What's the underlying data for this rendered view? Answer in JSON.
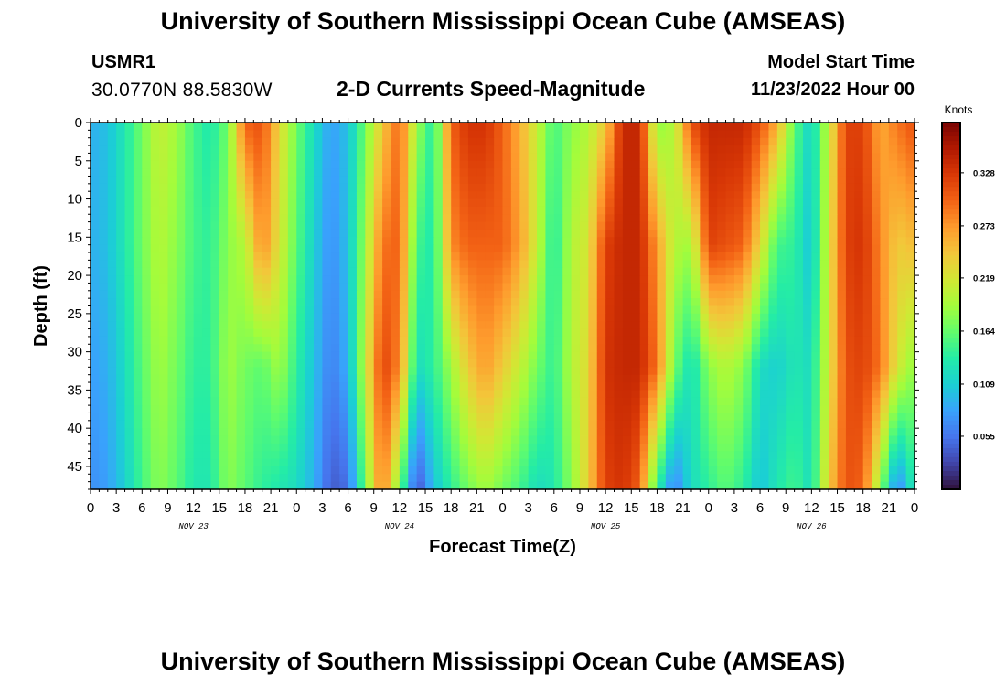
{
  "header": {
    "title": "University of Southern Mississippi Ocean Cube (AMSEAS)",
    "station_id": "USMR1",
    "coordinates": "30.0770N  88.5830W",
    "subtitle": "2-D Currents Speed-Magnitude",
    "model_start_label": "Model Start Time",
    "model_start_value": "11/23/2022 Hour 00"
  },
  "footer": {
    "title": "University of Southern Mississippi Ocean Cube (AMSEAS)"
  },
  "colors": {
    "background": "#ffffff",
    "axis": "#000000"
  },
  "chart_data": {
    "type": "heatmap",
    "xlabel": "Forecast Time(Z)",
    "ylabel": "Depth (ft)",
    "colorbar_label": "Knots",
    "colorbar_ticks": [
      "0.055",
      "0.109",
      "0.164",
      "0.219",
      "0.273",
      "0.328"
    ],
    "colorbar_values": [
      0.055,
      0.109,
      0.164,
      0.219,
      0.273,
      0.328
    ],
    "value_range": [
      0.0,
      0.38
    ],
    "colormap": [
      "#30123b",
      "#4145ab",
      "#4675ed",
      "#39a2fc",
      "#1bcfd4",
      "#24eca6",
      "#61fc6c",
      "#a4fc3b",
      "#d1e834",
      "#f3c63a",
      "#fe9b2d",
      "#f36315",
      "#d93806",
      "#b11901",
      "#7a0402"
    ],
    "x_hours": [
      0,
      96
    ],
    "x_tick_hours": [
      0,
      3,
      6,
      9,
      12,
      15,
      18,
      21,
      24,
      27,
      30,
      33,
      36,
      39,
      42,
      45,
      48,
      51,
      54,
      57,
      60,
      63,
      66,
      69,
      72,
      75,
      78,
      81,
      84,
      87,
      90,
      93,
      96
    ],
    "x_tick_labels": [
      "0",
      "3",
      "6",
      "9",
      "12",
      "15",
      "18",
      "21",
      "0",
      "3",
      "6",
      "9",
      "12",
      "15",
      "18",
      "21",
      "0",
      "3",
      "6",
      "9",
      "12",
      "15",
      "18",
      "21",
      "0",
      "3",
      "6",
      "9",
      "12",
      "15",
      "18",
      "21",
      "0"
    ],
    "day_labels": [
      "NOV 23",
      "NOV 24",
      "NOV 25",
      "NOV 26"
    ],
    "day_label_hours": [
      12,
      36,
      60,
      84
    ],
    "ylim": [
      0,
      48
    ],
    "y_ticks": [
      0,
      5,
      10,
      15,
      20,
      25,
      30,
      35,
      40,
      45
    ],
    "y_tick_labels": [
      "0",
      "5",
      "10",
      "15",
      "20",
      "25",
      "30",
      "35",
      "40",
      "45"
    ],
    "depths": [
      0,
      16,
      32,
      48
    ],
    "hours": [
      0,
      2,
      4,
      6,
      8,
      10,
      12,
      14,
      16,
      18,
      20,
      22,
      24,
      26,
      28,
      30,
      32,
      34,
      36,
      38,
      40,
      42,
      44,
      46,
      48,
      50,
      52,
      54,
      56,
      58,
      60,
      62,
      64,
      66,
      68,
      70,
      72,
      74,
      76,
      78,
      80,
      82,
      84,
      86,
      88,
      90,
      92,
      94,
      96
    ],
    "speed_knots": [
      [
        0.09,
        0.1,
        0.13,
        0.17,
        0.21,
        0.19,
        0.15,
        0.13,
        0.17,
        0.3,
        0.31,
        0.23,
        0.17,
        0.12,
        0.08,
        0.1,
        0.17,
        0.24,
        0.3,
        0.19,
        0.13,
        0.3,
        0.33,
        0.33,
        0.3,
        0.26,
        0.21,
        0.15,
        0.18,
        0.2,
        0.24,
        0.34,
        0.34,
        0.18,
        0.2,
        0.31,
        0.34,
        0.34,
        0.34,
        0.31,
        0.26,
        0.16,
        0.11,
        0.21,
        0.32,
        0.32,
        0.26,
        0.29,
        0.31
      ],
      [
        0.09,
        0.1,
        0.13,
        0.17,
        0.2,
        0.18,
        0.15,
        0.14,
        0.18,
        0.2,
        0.28,
        0.22,
        0.16,
        0.11,
        0.07,
        0.1,
        0.19,
        0.29,
        0.3,
        0.15,
        0.13,
        0.28,
        0.3,
        0.3,
        0.3,
        0.27,
        0.21,
        0.13,
        0.2,
        0.22,
        0.32,
        0.34,
        0.34,
        0.27,
        0.2,
        0.19,
        0.32,
        0.31,
        0.3,
        0.23,
        0.15,
        0.14,
        0.1,
        0.22,
        0.32,
        0.33,
        0.28,
        0.24,
        0.25
      ],
      [
        0.08,
        0.09,
        0.12,
        0.16,
        0.19,
        0.17,
        0.14,
        0.14,
        0.19,
        0.17,
        0.16,
        0.19,
        0.14,
        0.1,
        0.06,
        0.09,
        0.21,
        0.32,
        0.28,
        0.12,
        0.14,
        0.19,
        0.24,
        0.27,
        0.24,
        0.21,
        0.17,
        0.14,
        0.2,
        0.23,
        0.33,
        0.34,
        0.34,
        0.29,
        0.17,
        0.12,
        0.18,
        0.2,
        0.18,
        0.12,
        0.11,
        0.13,
        0.12,
        0.22,
        0.31,
        0.32,
        0.29,
        0.22,
        0.18
      ],
      [
        0.07,
        0.08,
        0.11,
        0.15,
        0.18,
        0.16,
        0.13,
        0.13,
        0.18,
        0.16,
        0.14,
        0.13,
        0.12,
        0.09,
        0.04,
        0.05,
        0.17,
        0.29,
        0.17,
        0.03,
        0.1,
        0.14,
        0.17,
        0.19,
        0.17,
        0.15,
        0.12,
        0.13,
        0.18,
        0.24,
        0.32,
        0.33,
        0.3,
        0.14,
        0.06,
        0.12,
        0.14,
        0.16,
        0.14,
        0.1,
        0.13,
        0.15,
        0.12,
        0.24,
        0.31,
        0.3,
        0.18,
        0.06,
        0.14
      ]
    ]
  }
}
